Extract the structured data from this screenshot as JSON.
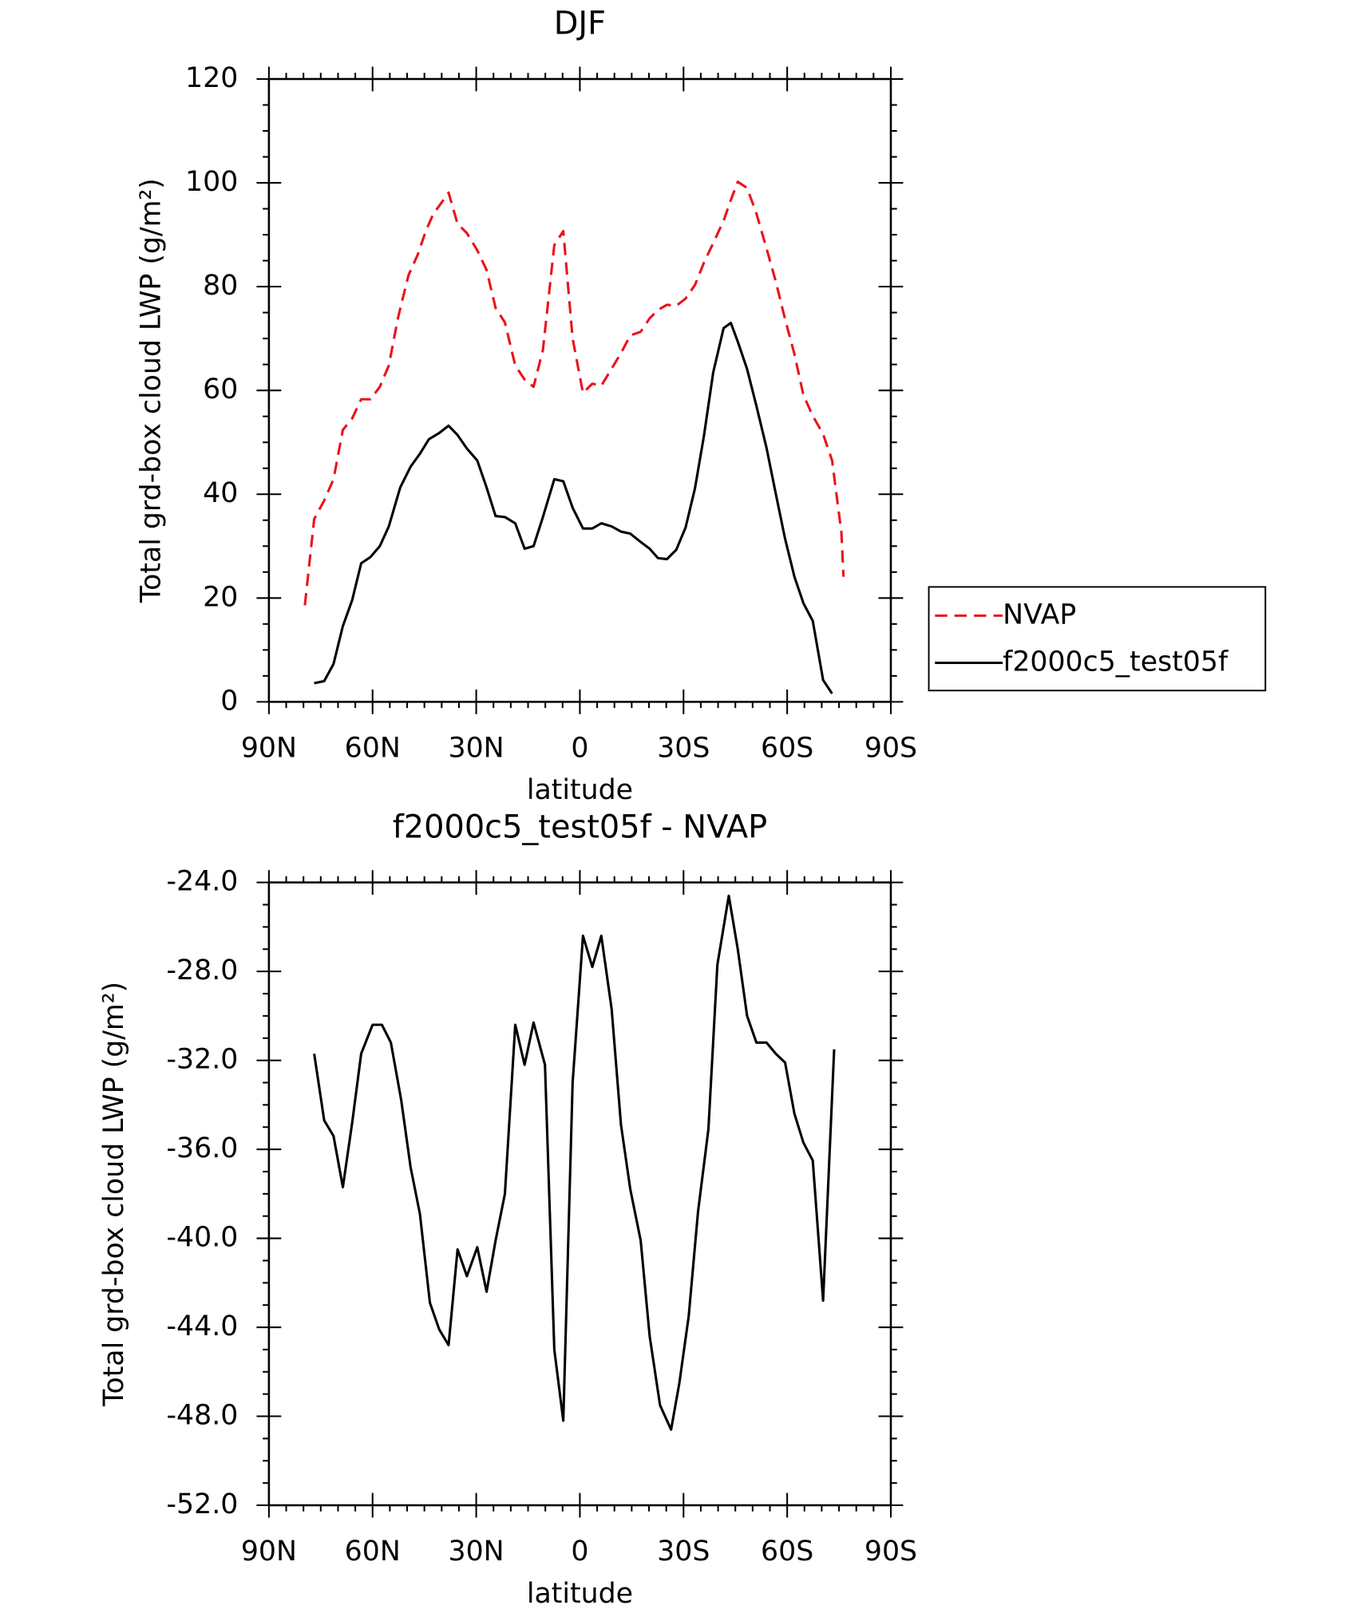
{
  "chart_data": [
    {
      "type": "line",
      "title": "DJF",
      "xlabel": "latitude",
      "ylabel": "Total grd-box cloud LWP (g/m²)",
      "xlim": [
        90,
        -90
      ],
      "xticks": [
        {
          "value": 90,
          "label": "90N"
        },
        {
          "value": 60,
          "label": "60N"
        },
        {
          "value": 30,
          "label": "30N"
        },
        0,
        {
          "value": -30,
          "label": "30S"
        },
        {
          "value": -60,
          "label": "60S"
        },
        {
          "value": -90,
          "label": "90S"
        }
      ],
      "ylim": [
        0,
        120
      ],
      "yticks": [
        0,
        20,
        40,
        60,
        80,
        100,
        120
      ],
      "minor_subdivisions": {
        "x": 6,
        "y": 4
      },
      "legend": "right",
      "series": [
        {
          "name": "NVAP",
          "color": "#e8141c",
          "line_style": "dashed",
          "x": [
            79.6,
            76.9,
            74.0,
            71.3,
            68.6,
            65.9,
            63.3,
            60.6,
            57.9,
            55.3,
            52.6,
            49.6,
            46.9,
            44.6,
            42.5,
            38.0,
            35.4,
            32.7,
            29.7,
            27.0,
            24.4,
            21.7,
            18.7,
            16.0,
            13.4,
            10.7,
            7.4,
            4.8,
            2.1,
            -0.9,
            -3.6,
            -6.2,
            -9.2,
            -11.9,
            -14.6,
            -17.6,
            -20.2,
            -22.6,
            -25.2,
            -27.9,
            -30.6,
            -33.3,
            -35.9,
            -38.6,
            -41.6,
            -43.7,
            -45.7,
            -48.4,
            -51.1,
            -54.0,
            -56.7,
            -59.4,
            -62.1,
            -64.7,
            -67.4,
            -70.4,
            -73.0,
            -75.7,
            -76.3
          ],
          "values": [
            18.6,
            35.2,
            38.8,
            42.9,
            52.4,
            54.6,
            58.3,
            58.3,
            60.7,
            64.8,
            74.1,
            82.2,
            86.2,
            90.7,
            93.9,
            98.1,
            92.1,
            90.3,
            87.0,
            83.2,
            75.9,
            73.1,
            64.8,
            62.1,
            60.7,
            67.8,
            88.0,
            90.7,
            70.0,
            59.5,
            61.3,
            60.9,
            64.2,
            67.2,
            70.6,
            71.3,
            73.9,
            75.5,
            76.5,
            76.3,
            77.7,
            80.3,
            84.6,
            88.4,
            92.7,
            96.7,
            100.2,
            99.0,
            94.1,
            87.4,
            81.0,
            73.7,
            67.0,
            59.1,
            55.1,
            51.6,
            46.5,
            32.6,
            24.1
          ]
        },
        {
          "name": "f2000c5_test05f",
          "color": "#000000",
          "line_style": "solid",
          "x": [
            76.9,
            74.0,
            71.3,
            68.6,
            65.9,
            63.3,
            60.6,
            57.9,
            55.3,
            52.0,
            49.0,
            46.3,
            43.7,
            40.7,
            38.0,
            35.4,
            32.7,
            29.7,
            27.0,
            24.4,
            21.7,
            18.7,
            16.0,
            13.4,
            10.7,
            7.4,
            4.8,
            2.1,
            -0.9,
            -3.6,
            -6.2,
            -9.2,
            -11.9,
            -14.6,
            -17.6,
            -20.2,
            -22.6,
            -25.2,
            -27.9,
            -30.6,
            -33.3,
            -35.9,
            -38.6,
            -41.6,
            -43.7,
            -45.7,
            -48.4,
            -51.1,
            -54.0,
            -56.7,
            -59.4,
            -62.1,
            -64.7,
            -67.4,
            -70.4,
            -73.0
          ],
          "values": [
            3.6,
            4.0,
            7.3,
            14.6,
            19.6,
            26.7,
            27.9,
            30.0,
            33.8,
            41.3,
            45.3,
            47.8,
            50.6,
            51.8,
            53.2,
            51.4,
            48.8,
            46.5,
            41.3,
            35.8,
            35.6,
            34.4,
            29.5,
            30.0,
            35.6,
            42.9,
            42.5,
            37.4,
            33.4,
            33.4,
            34.4,
            33.8,
            32.8,
            32.4,
            30.8,
            29.5,
            27.7,
            27.5,
            29.3,
            33.6,
            41.1,
            51.2,
            63.5,
            72.0,
            73.0,
            69.4,
            64.1,
            57.0,
            49.0,
            40.1,
            31.4,
            24.1,
            19.0,
            15.6,
            4.2,
            1.6
          ]
        }
      ]
    },
    {
      "type": "line",
      "title": "f2000c5_test05f - NVAP",
      "xlabel": "latitude",
      "ylabel": "Total grd-box cloud LWP (g/m²)",
      "xlim": [
        90,
        -90
      ],
      "xticks": [
        {
          "value": 90,
          "label": "90N"
        },
        {
          "value": 60,
          "label": "60N"
        },
        {
          "value": 30,
          "label": "30N"
        },
        0,
        {
          "value": -30,
          "label": "30S"
        },
        {
          "value": -60,
          "label": "60S"
        },
        {
          "value": -90,
          "label": "90S"
        }
      ],
      "ylim": [
        -52,
        -24
      ],
      "yticks": [
        {
          "value": -52,
          "label": "-52.0"
        },
        {
          "value": -48,
          "label": "-48.0"
        },
        {
          "value": -44,
          "label": "-44.0"
        },
        {
          "value": -40,
          "label": "-40.0"
        },
        {
          "value": -36,
          "label": "-36.0"
        },
        {
          "value": -32,
          "label": "-32.0"
        },
        {
          "value": -28,
          "label": "-28.0"
        },
        {
          "value": -24,
          "label": "-24.0"
        }
      ],
      "minor_subdivisions": {
        "x": 6,
        "y": 4
      },
      "series": [
        {
          "color": "#000000",
          "line_style": "solid",
          "x": [
            76.9,
            74.0,
            71.3,
            68.6,
            65.9,
            63.3,
            60.0,
            57.3,
            54.7,
            51.7,
            49.0,
            46.3,
            43.4,
            40.7,
            38.0,
            35.4,
            32.7,
            29.7,
            27.0,
            24.4,
            21.7,
            18.7,
            16.0,
            13.4,
            10.1,
            7.4,
            4.8,
            2.1,
            -0.9,
            -3.6,
            -6.2,
            -9.2,
            -11.9,
            -14.6,
            -17.6,
            -20.2,
            -23.2,
            -26.4,
            -28.8,
            -31.5,
            -34.2,
            -37.2,
            -39.8,
            -43.1,
            -45.7,
            -48.4,
            -51.1,
            -54.0,
            -56.7,
            -59.4,
            -62.1,
            -64.7,
            -67.4,
            -70.4,
            -73.6
          ],
          "values": [
            -31.7,
            -34.7,
            -35.4,
            -37.7,
            -34.8,
            -31.7,
            -30.4,
            -30.4,
            -31.2,
            -33.8,
            -36.8,
            -38.9,
            -42.9,
            -44.1,
            -44.8,
            -40.5,
            -41.7,
            -40.4,
            -42.4,
            -40.1,
            -38.0,
            -30.4,
            -32.2,
            -30.3,
            -32.2,
            -45.0,
            -48.2,
            -33.0,
            -26.4,
            -27.8,
            -26.4,
            -29.7,
            -34.9,
            -37.8,
            -40.1,
            -44.4,
            -47.5,
            -48.6,
            -46.5,
            -43.5,
            -38.8,
            -35.1,
            -27.7,
            -24.6,
            -27.0,
            -30.0,
            -31.2,
            -31.2,
            -31.7,
            -32.1,
            -34.4,
            -35.7,
            -36.5,
            -42.8,
            -31.5
          ]
        }
      ]
    }
  ]
}
